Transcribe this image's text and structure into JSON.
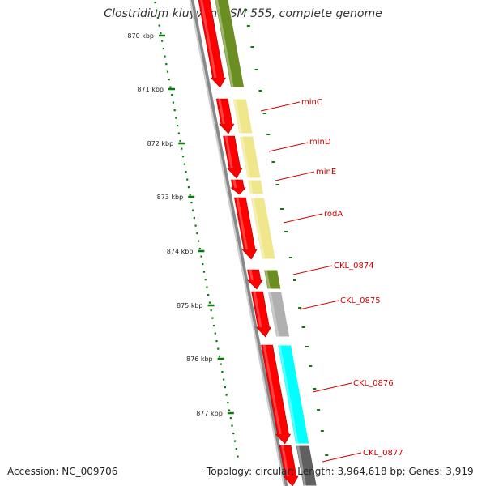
{
  "title": "Clostridium kluyveri DSM 555, complete genome",
  "footer": {
    "accession": "Accession: NC_009706",
    "stats": "Topology: circular; Length: 3,964,618 bp; Genes: 3,919"
  },
  "colors": {
    "forward_gene": "#ff0000",
    "label_line": "#cc0000",
    "tick": "#0a7a0a",
    "backbone": "#888888"
  },
  "ticks": [
    "870 kbp",
    "871 kbp",
    "872 kbp",
    "873 kbp",
    "874 kbp",
    "875 kbp",
    "876 kbp",
    "877 kbp"
  ],
  "genes": [
    {
      "label": "",
      "category_color": "#6b8e23"
    },
    {
      "label": "minC",
      "category_color": "#f0e68c"
    },
    {
      "label": "minD",
      "category_color": "#f0e68c"
    },
    {
      "label": "minE",
      "category_color": "#f0e68c"
    },
    {
      "label": "rodA",
      "category_color": "#f0e68c"
    },
    {
      "label": "CKL_0874",
      "category_color": "#6b8e23"
    },
    {
      "label": "CKL_0875",
      "category_color": "#b0b0b0"
    },
    {
      "label": "CKL_0876",
      "category_color": "#00ffff"
    },
    {
      "label": "CKL_0877",
      "category_color": "#606060"
    }
  ]
}
